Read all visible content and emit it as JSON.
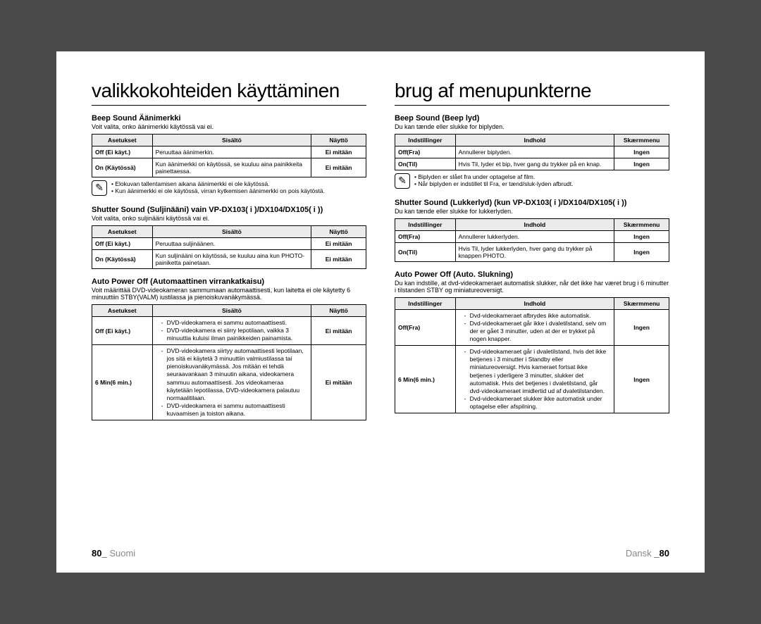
{
  "left": {
    "title": "valikkokohteiden käyttäminen",
    "beep": {
      "heading": "Beep Sound Äänimerkki",
      "intro": "Voit valita, onko äänimerkki käytössä vai ei.",
      "headers": [
        "Asetukset",
        "Sisältö",
        "Näyttö"
      ],
      "rows": [
        {
          "c1": "Off (Ei käyt.)",
          "c2": "Peruuttaa äänimerkin.",
          "c3": "Ei mitään"
        },
        {
          "c1": "On (Käytössä)",
          "c2": "Kun äänimerkki on käytössä, se kuuluu aina painikkeita painettaessa.",
          "c3": "Ei mitään"
        }
      ],
      "notes": [
        "Elokuvan tallentamisen aikana äänimerkki ei ole käytössä.",
        "Kun äänimerkki ei ole käytössä, virran kytkemisen äänimerkki on pois käytöstä."
      ]
    },
    "shutter": {
      "heading": "Shutter Sound (Suljinääni) vain VP-DX103( i )/DX104/DX105( i ))",
      "intro": "Voit valita, onko suljinääni käytössä vai ei.",
      "headers": [
        "Asetukset",
        "Sisältö",
        "Näyttö"
      ],
      "rows": [
        {
          "c1": "Off (Ei käyt.)",
          "c2": "Peruuttaa suljinäänen.",
          "c3": "Ei mitään"
        },
        {
          "c1": "On (Käytössä)",
          "c2": "Kun suljinääni on käytössä, se kuuluu aina kun PHOTO-painiketta painetaan.",
          "c3": "Ei mitään"
        }
      ]
    },
    "autopower": {
      "heading": "Auto Power Off (Automaattinen virrankatkaisu)",
      "intro": "Voit määrittää DVD-videokameran sammumaan automaattisesti, kun laitetta ei ole käytetty 6 minuuttiin STBY(VALM) iustilassa ja pienoiskuvanäkymässä.",
      "headers": [
        "Asetukset",
        "Sisältö",
        "Näyttö"
      ],
      "rows": [
        {
          "c1": "Off (Ei käyt.)",
          "c3": "Ei mitään",
          "items": [
            "DVD-videokamera ei sammu automaattisesti.",
            "DVD-videokamera ei siirry lepotilaan, vaikka 3 minuuttia kuluisi ilman painikkeiden painamista."
          ]
        },
        {
          "c1": "6 Min(6 min.)",
          "c3": "Ei mitään",
          "items": [
            "DVD-videokamera siirtyy automaattisesti lepotilaan, jos sitä ei käytetä 3 minuuttiin valmiustilassa tai pienoiskuvanäkymässä. Jos mitään ei tehdä seuraavankaan 3 minuutin aikana, videokamera sammuu automaattisesti. Jos videokameraa käytetään lepotilassa, DVD-videokamera palautuu normaalitilaan.",
            "DVD-videokamera ei sammu automaattisesti kuvaamisen ja toiston aikana."
          ]
        }
      ]
    },
    "footer_num": "80_",
    "footer_lang": "Suomi"
  },
  "right": {
    "title": "brug af menupunkterne",
    "beep": {
      "heading": "Beep Sound (Beep lyd)",
      "intro": "Du kan tænde eller slukke for biplyden.",
      "headers": [
        "Indstillinger",
        "Indhold",
        "Skærmmenu"
      ],
      "rows": [
        {
          "c1": "Off(Fra)",
          "c2": "Annullerer biplyden.",
          "c3": "Ingen"
        },
        {
          "c1": "On(Til)",
          "c2": "Hvis Til, lyder et bip, hver gang du trykker på en knap.",
          "c3": "Ingen"
        }
      ],
      "notes": [
        "Biplyden er slået fra under optagelse af film.",
        "Når biplyden er indstillet til Fra, er tænd/sluk-lyden afbrudt."
      ]
    },
    "shutter": {
      "heading": "Shutter Sound (Lukkerlyd) (kun VP-DX103( i )/DX104/DX105( i ))",
      "intro": "Du kan tænde eller slukke for lukkerlyden.",
      "headers": [
        "Indstillinger",
        "Indhold",
        "Skærmmenu"
      ],
      "rows": [
        {
          "c1": "Off(Fra)",
          "c2": "Annullerer lukkerlyden.",
          "c3": "Ingen"
        },
        {
          "c1": "On(Til)",
          "c2": "Hvis Til, lyder lukkerlyden, hver gang du trykker på knappen PHOTO.",
          "c3": "Ingen"
        }
      ]
    },
    "autopower": {
      "heading": "Auto Power Off (Auto. Slukning)",
      "intro": "Du kan indstille, at dvd-videokameraet automatisk slukker, når det ikke har været brug i 6 minutter i tilstanden STBY og miniatureoversigt.",
      "headers": [
        "Indstillinger",
        "Indhold",
        "Skærmmenu"
      ],
      "rows": [
        {
          "c1": "Off(Fra)",
          "c3": "Ingen",
          "items": [
            "Dvd-videokameraet afbrydes ikke automatisk.",
            "Dvd-videokameraet går ikke i dvaletilstand, selv om der er gået 3 minutter, uden at der er trykket på nogen knapper."
          ]
        },
        {
          "c1": "6 Min(6 min.)",
          "c3": "Ingen",
          "items": [
            "Dvd-videokameraet går i dvaletilstand, hvis det ikke betjenes i 3 minutter i Standby eller miniatureoversigt. Hvis kameraet fortsat ikke betjenes i yderligere 3 minutter, slukker det automatisk. Hvis det betjenes i dvaletilstand, går dvd-videokameraet imidlertid ud af dvaletilstanden.",
            "Dvd-videokameraet slukker ikke automatisk under optagelse eller afspilning."
          ]
        }
      ]
    },
    "footer_lang": "Dansk",
    "footer_num": "_80"
  }
}
